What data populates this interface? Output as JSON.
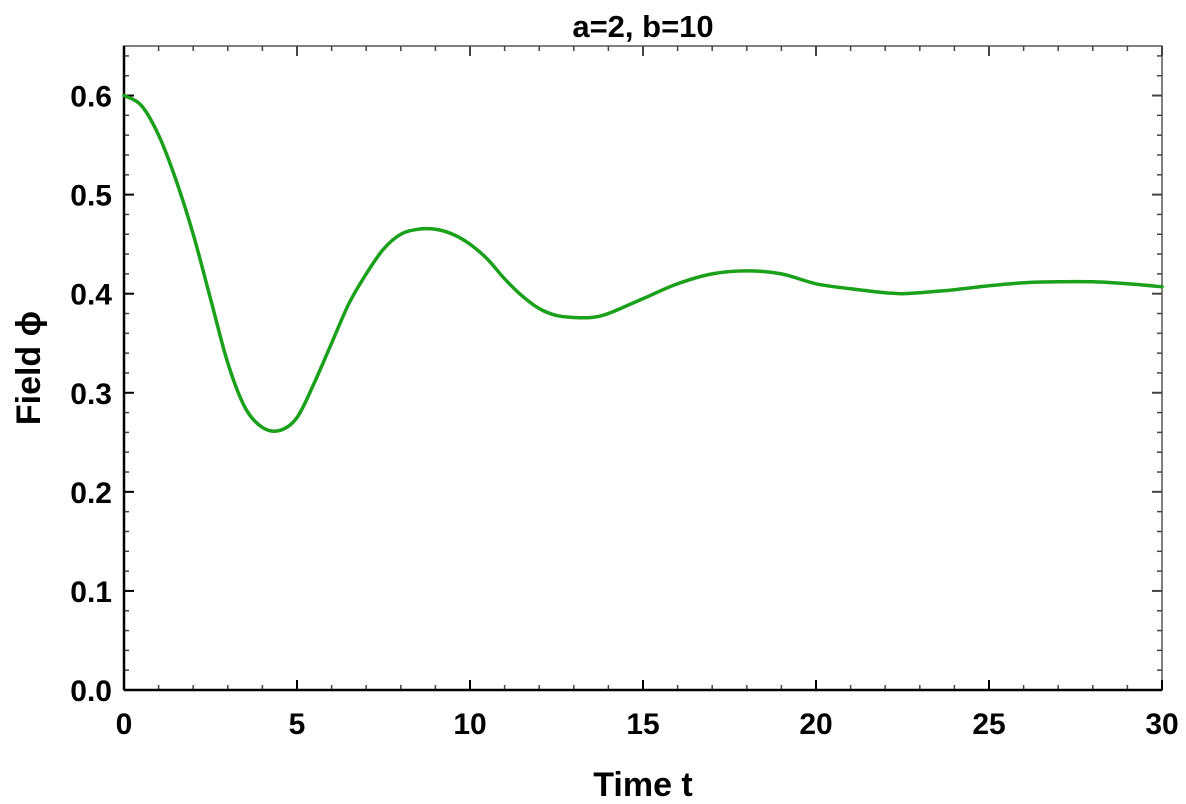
{
  "chart_data": {
    "type": "line",
    "title": "a=2, b=10",
    "xlabel": "Time t",
    "ylabel": "Field ϕ",
    "xlim": [
      0,
      30
    ],
    "ylim": [
      0,
      0.65
    ],
    "x_ticks": [
      {
        "value": 0,
        "label": "0"
      },
      {
        "value": 5,
        "label": "5"
      },
      {
        "value": 10,
        "label": "10"
      },
      {
        "value": 15,
        "label": "15"
      },
      {
        "value": 20,
        "label": "20"
      },
      {
        "value": 25,
        "label": "25"
      },
      {
        "value": 30,
        "label": "30"
      }
    ],
    "y_ticks": [
      {
        "value": 0.0,
        "label": "0.0"
      },
      {
        "value": 0.1,
        "label": "0.1"
      },
      {
        "value": 0.2,
        "label": "0.2"
      },
      {
        "value": 0.3,
        "label": "0.3"
      },
      {
        "value": 0.4,
        "label": "0.4"
      },
      {
        "value": 0.5,
        "label": "0.5"
      },
      {
        "value": 0.6,
        "label": "0.6"
      }
    ],
    "grid": false,
    "series_color": "#1aa01a",
    "series": [
      {
        "x": [
          0,
          0.5,
          1,
          1.5,
          2,
          2.5,
          3,
          3.5,
          4,
          4.5,
          5,
          5.5,
          6,
          6.5,
          7,
          7.5,
          8,
          8.5,
          9,
          9.5,
          10,
          10.5,
          11,
          11.5,
          12,
          12.5,
          13,
          13.5,
          14,
          15,
          16,
          17,
          18,
          19,
          20,
          21,
          22,
          22.5,
          23,
          24,
          25,
          26,
          27,
          28,
          29,
          30
        ],
        "y": [
          0.6,
          0.59,
          0.56,
          0.515,
          0.46,
          0.395,
          0.33,
          0.285,
          0.265,
          0.262,
          0.275,
          0.31,
          0.35,
          0.39,
          0.42,
          0.445,
          0.46,
          0.465,
          0.465,
          0.46,
          0.45,
          0.435,
          0.415,
          0.398,
          0.385,
          0.378,
          0.376,
          0.376,
          0.38,
          0.395,
          0.41,
          0.42,
          0.423,
          0.42,
          0.41,
          0.405,
          0.401,
          0.4,
          0.401,
          0.404,
          0.408,
          0.411,
          0.412,
          0.412,
          0.41,
          0.407
        ]
      }
    ]
  }
}
